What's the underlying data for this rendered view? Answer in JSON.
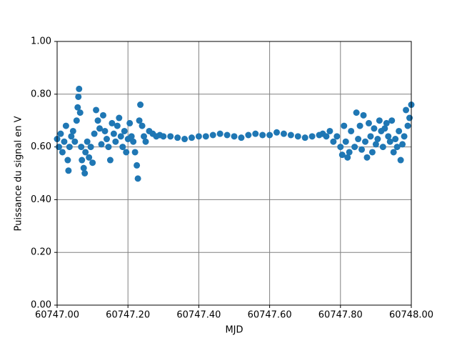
{
  "chart_data": {
    "type": "scatter",
    "x_label": "MJD",
    "y_label": "Puissance du signal en V",
    "series": [
      {
        "color": "#1f77b4",
        "x": [
          60747.0,
          60747.005,
          60747.01,
          60747.015,
          60747.02,
          60747.025,
          60747.03,
          60747.032,
          60747.035,
          60747.04,
          60747.045,
          60747.05,
          60747.055,
          60747.058,
          60747.06,
          60747.062,
          60747.065,
          60747.068,
          60747.07,
          60747.075,
          60747.078,
          60747.08,
          60747.085,
          60747.09,
          60747.095,
          60747.1,
          60747.105,
          60747.11,
          60747.115,
          60747.12,
          60747.125,
          60747.13,
          60747.135,
          60747.14,
          60747.145,
          60747.15,
          60747.155,
          60747.16,
          60747.165,
          60747.17,
          60747.175,
          60747.18,
          60747.185,
          60747.19,
          60747.195,
          60747.2,
          60747.205,
          60747.21,
          60747.215,
          60747.22,
          60747.225,
          60747.228,
          60747.232,
          60747.235,
          60747.24,
          60747.245,
          60747.25,
          60747.26,
          60747.27,
          60747.28,
          60747.29,
          60747.3,
          60747.32,
          60747.34,
          60747.36,
          60747.38,
          60747.4,
          60747.42,
          60747.44,
          60747.46,
          60747.48,
          60747.5,
          60747.52,
          60747.54,
          60747.56,
          60747.58,
          60747.6,
          60747.62,
          60747.64,
          60747.66,
          60747.68,
          60747.7,
          60747.72,
          60747.74,
          60747.75,
          60747.76,
          60747.77,
          60747.78,
          60747.79,
          60747.8,
          60747.805,
          60747.81,
          60747.815,
          60747.82,
          60747.825,
          60747.83,
          60747.84,
          60747.845,
          60747.85,
          60747.855,
          60747.86,
          60747.865,
          60747.87,
          60747.875,
          60747.88,
          60747.885,
          60747.89,
          60747.895,
          60747.9,
          60747.905,
          60747.91,
          60747.915,
          60747.92,
          60747.925,
          60747.93,
          60747.935,
          60747.94,
          60747.945,
          60747.95,
          60747.955,
          60747.96,
          60747.965,
          60747.97,
          60747.975,
          60747.98,
          60747.985,
          60747.99,
          60747.995,
          60748.0
        ],
        "values": [
          0.63,
          0.6,
          0.65,
          0.58,
          0.62,
          0.68,
          0.55,
          0.51,
          0.6,
          0.64,
          0.66,
          0.62,
          0.7,
          0.75,
          0.79,
          0.82,
          0.73,
          0.6,
          0.55,
          0.52,
          0.5,
          0.58,
          0.62,
          0.56,
          0.6,
          0.54,
          0.65,
          0.74,
          0.7,
          0.67,
          0.61,
          0.72,
          0.66,
          0.63,
          0.6,
          0.55,
          0.69,
          0.65,
          0.62,
          0.68,
          0.71,
          0.64,
          0.6,
          0.66,
          0.58,
          0.63,
          0.69,
          0.64,
          0.62,
          0.58,
          0.53,
          0.48,
          0.7,
          0.76,
          0.68,
          0.64,
          0.62,
          0.66,
          0.65,
          0.64,
          0.645,
          0.64,
          0.64,
          0.635,
          0.63,
          0.635,
          0.64,
          0.64,
          0.645,
          0.65,
          0.645,
          0.64,
          0.635,
          0.645,
          0.65,
          0.645,
          0.645,
          0.655,
          0.65,
          0.645,
          0.64,
          0.635,
          0.64,
          0.645,
          0.65,
          0.64,
          0.66,
          0.62,
          0.64,
          0.6,
          0.57,
          0.68,
          0.62,
          0.56,
          0.58,
          0.66,
          0.6,
          0.73,
          0.63,
          0.68,
          0.59,
          0.72,
          0.62,
          0.56,
          0.69,
          0.64,
          0.58,
          0.67,
          0.61,
          0.63,
          0.7,
          0.66,
          0.6,
          0.67,
          0.69,
          0.64,
          0.62,
          0.7,
          0.58,
          0.63,
          0.6,
          0.66,
          0.55,
          0.61,
          0.64,
          0.74,
          0.68,
          0.71,
          0.76
        ]
      }
    ],
    "xlim": [
      60747.0,
      60748.0
    ],
    "ylim": [
      0,
      1
    ],
    "xticks": [
      {
        "value": 60747.0,
        "label": "60747.00"
      },
      {
        "value": 60747.2,
        "label": "60747.20"
      },
      {
        "value": 60747.4,
        "label": "60747.40"
      },
      {
        "value": 60747.6,
        "label": "60747.60"
      },
      {
        "value": 60747.8,
        "label": "60747.80"
      },
      {
        "value": 60748.0,
        "label": "60748.00"
      }
    ],
    "yticks": [
      {
        "value": 0,
        "label": "0.00"
      },
      {
        "value": 0.2,
        "label": "0.20"
      },
      {
        "value": 0.4,
        "label": "0.40"
      },
      {
        "value": 0.6,
        "label": "0.60"
      },
      {
        "value": 0.8,
        "label": "0.80"
      },
      {
        "value": 1,
        "label": "1.00"
      }
    ],
    "grid": true
  }
}
